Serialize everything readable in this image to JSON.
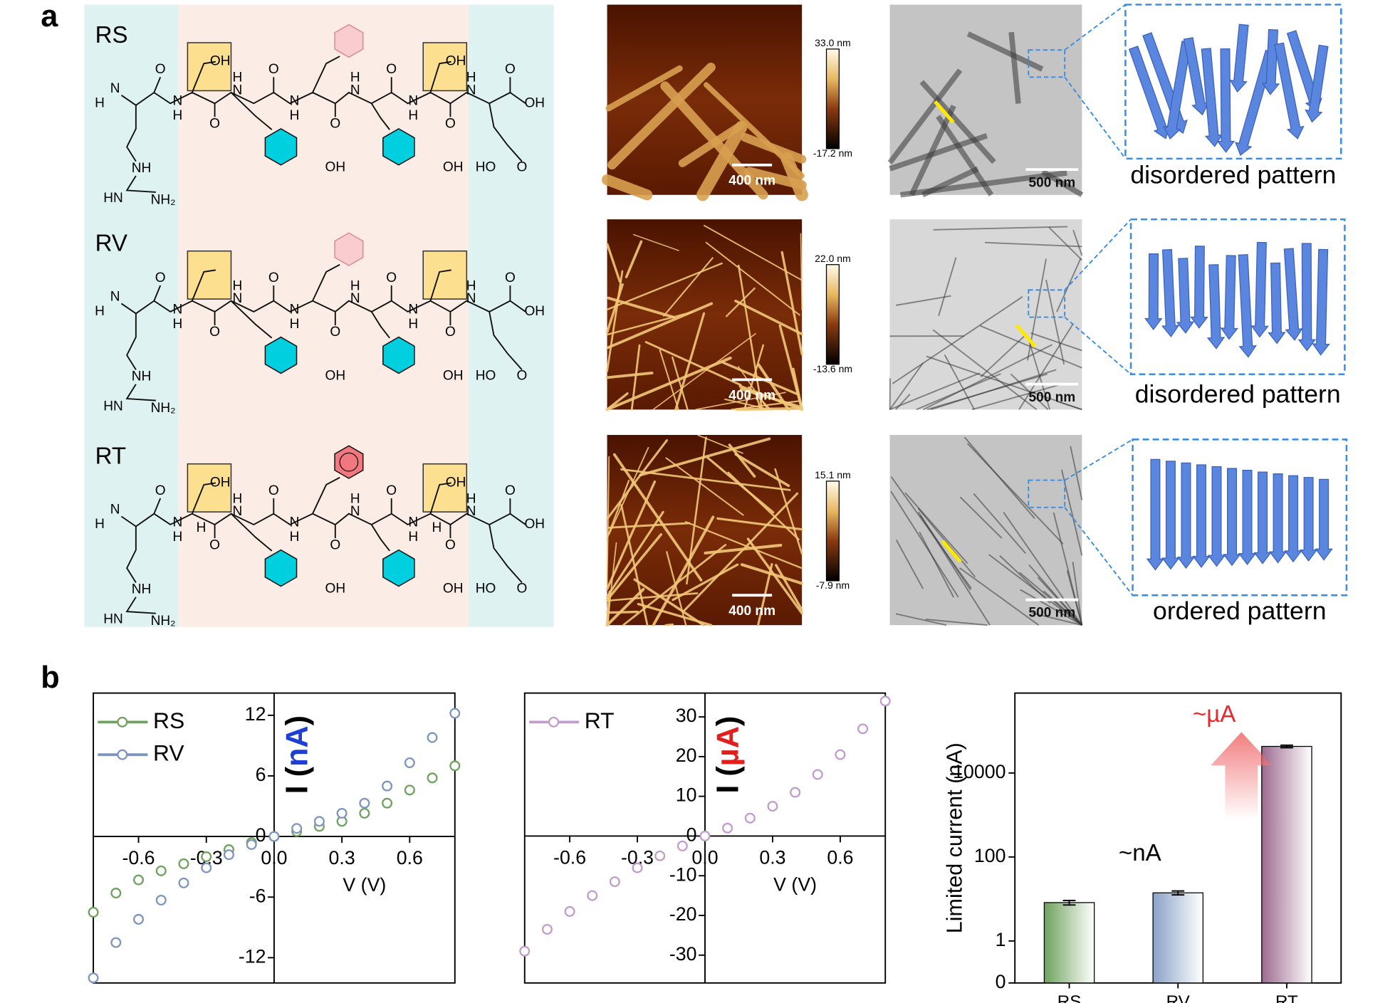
{
  "panel_a": {
    "label": "a",
    "backbone_labels": [
      "H",
      "N",
      "O",
      "N",
      "H",
      "O",
      "N",
      "H",
      "O",
      "N",
      "H",
      "O",
      "N",
      "H",
      "O",
      "N",
      "H",
      "O",
      "N",
      "H",
      "O",
      "OH",
      "OH",
      "OH",
      "HO",
      "O",
      "NH",
      "HN",
      "NH₂"
    ],
    "peptides": [
      {
        "name": "RS",
        "side_chain_labels": [
          "OH",
          "OH"
        ],
        "afm_scale": "400 nm",
        "colorbar_max": "33.0 nm",
        "colorbar_min": "-17.2 nm",
        "tem_scale": "500 nm",
        "pattern": "disordered pattern"
      },
      {
        "name": "RV",
        "side_chain_labels": [],
        "afm_scale": "400 nm",
        "colorbar_max": "22.0 nm",
        "colorbar_min": "-13.6 nm",
        "tem_scale": "500 nm",
        "pattern": "disordered pattern"
      },
      {
        "name": "RT",
        "side_chain_labels": [
          "OH",
          "OH",
          "H",
          "H"
        ],
        "afm_scale": "400 nm",
        "colorbar_max": "15.1 nm",
        "colorbar_min": "-7.9 nm",
        "tem_scale": "500 nm",
        "pattern": "ordered pattern"
      }
    ]
  },
  "panel_b": {
    "label": "b"
  },
  "chart_data": [
    {
      "type": "scatter",
      "x_label": "V (V)",
      "y_label_parts": [
        "I (",
        "nA",
        ")"
      ],
      "y_unit_color": "#1e3fd6",
      "x": [
        -0.8,
        -0.7,
        -0.6,
        -0.5,
        -0.4,
        -0.3,
        -0.2,
        -0.1,
        0,
        0.1,
        0.2,
        0.3,
        0.4,
        0.5,
        0.6,
        0.7,
        0.8
      ],
      "series": [
        {
          "name": "RS",
          "color": "#6fa25e",
          "values": [
            -7.5,
            -5.6,
            -4.3,
            -3.4,
            -2.7,
            -2.0,
            -1.3,
            -0.6,
            0,
            0.5,
            1.0,
            1.5,
            2.3,
            3.3,
            4.6,
            5.8,
            7.0
          ]
        },
        {
          "name": "RV",
          "color": "#7d95c2",
          "values": [
            -14,
            -10.5,
            -8.2,
            -6.3,
            -4.6,
            -3.1,
            -1.8,
            -0.8,
            0,
            0.8,
            1.5,
            2.3,
            3.3,
            5.0,
            7.3,
            9.8,
            12.2
          ]
        }
      ],
      "xlim": [
        -0.8,
        0.8
      ],
      "ylim": [
        -14.5,
        14.2
      ],
      "xticks": [
        -0.6,
        -0.3,
        {
          "value": 0,
          "label": "0.0"
        },
        0.3,
        0.6
      ],
      "yticks": [
        -12,
        -6,
        0,
        6,
        12
      ],
      "legend": "upper left"
    },
    {
      "type": "scatter",
      "x_label": "V (V)",
      "y_label_parts": [
        "I (",
        "µA",
        ")"
      ],
      "y_unit_color": "#e0201f",
      "x": [
        -0.8,
        -0.7,
        -0.6,
        -0.5,
        -0.4,
        -0.3,
        -0.2,
        -0.1,
        0,
        0.1,
        0.2,
        0.3,
        0.4,
        0.5,
        0.6,
        0.7,
        0.8
      ],
      "series": [
        {
          "name": "RT",
          "color": "#c39ccd",
          "values": [
            -29,
            -23.5,
            -19,
            -15,
            -11.5,
            -8,
            -5,
            -2.5,
            0,
            2,
            4.5,
            7.5,
            11,
            15.5,
            20.5,
            27,
            34
          ]
        }
      ],
      "xlim": [
        -0.8,
        0.8
      ],
      "ylim": [
        -37,
        36
      ],
      "xticks": [
        -0.6,
        -0.3,
        {
          "value": 0,
          "label": "0.0"
        },
        0.3,
        0.6
      ],
      "yticks": [
        -30,
        -20,
        -10,
        0,
        10,
        20,
        30
      ],
      "legend": "upper left"
    },
    {
      "type": "bar",
      "y_label": "Limited current (nA)",
      "categories": [
        "RS",
        "RV",
        "RT"
      ],
      "values": [
        8.2,
        14,
        43000
      ],
      "errors": [
        1,
        1.5,
        3000
      ],
      "colors": [
        "#6fa25e",
        "#8aa3c8",
        "#9c6a8f"
      ],
      "ylim": [
        0.1,
        800000
      ],
      "yticks": [
        {
          "value": 0.1,
          "label": "0"
        },
        1,
        100,
        10000
      ],
      "log_scale": true,
      "annotations": [
        {
          "text": "~nA",
          "color": "#000000"
        },
        {
          "text": "~µA",
          "color": "#e8282a"
        }
      ]
    }
  ]
}
